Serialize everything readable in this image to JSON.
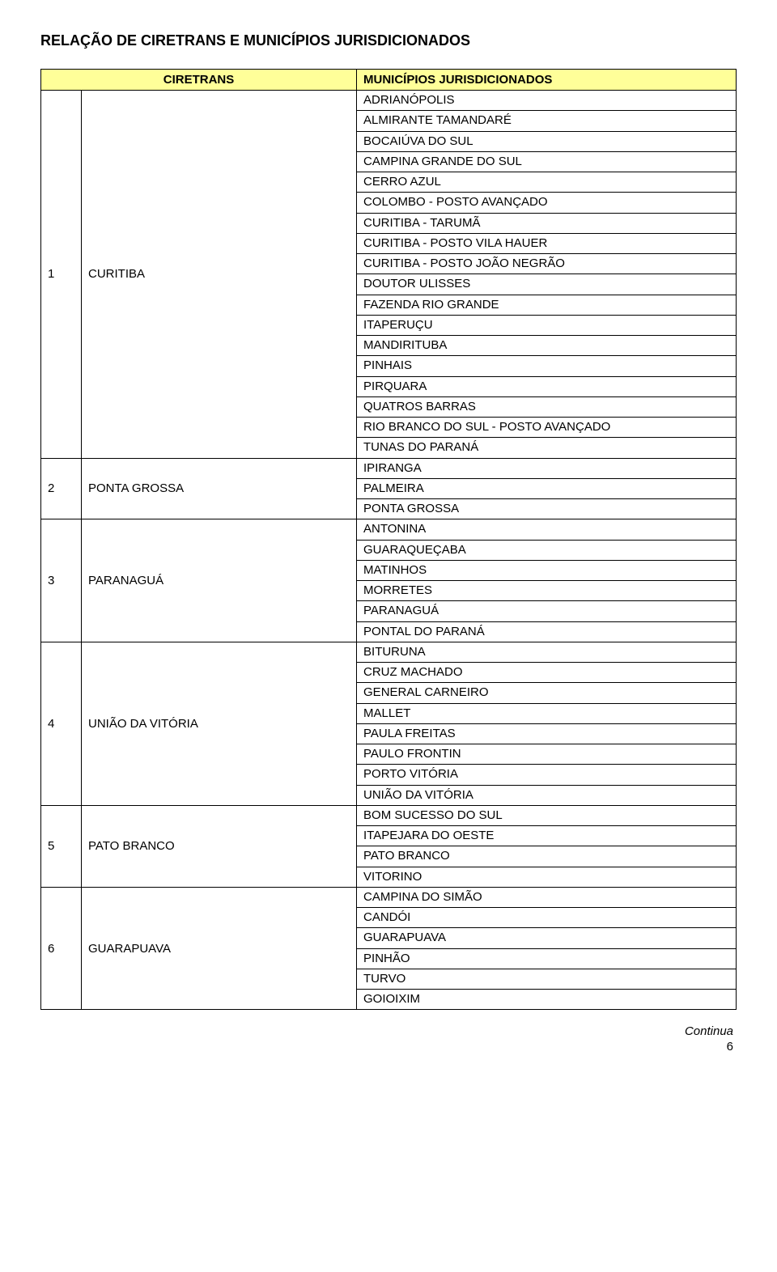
{
  "title": "RELAÇÃO DE CIRETRANS E MUNICÍPIOS JURISDICIONADOS",
  "headers": {
    "ciretrans": "CIRETRANS",
    "municipios": "MUNICÍPIOS JURISDICIONADOS"
  },
  "rows": [
    {
      "num": "1",
      "ciretrans": "CURITIBA",
      "municipios": [
        "ADRIANÓPOLIS",
        "ALMIRANTE TAMANDARÉ",
        "BOCAIÚVA DO SUL",
        "CAMPINA GRANDE DO SUL",
        "CERRO AZUL",
        "COLOMBO - POSTO AVANÇADO",
        "CURITIBA - TARUMÃ",
        "CURITIBA - POSTO VILA HAUER",
        "CURITIBA - POSTO JOÃO NEGRÃO",
        "DOUTOR ULISSES",
        "FAZENDA RIO GRANDE",
        "ITAPERUÇU",
        "MANDIRITUBA",
        "PINHAIS",
        "PIRQUARA",
        "QUATROS BARRAS",
        "RIO BRANCO DO SUL - POSTO AVANÇADO",
        "TUNAS DO PARANÁ"
      ]
    },
    {
      "num": "2",
      "ciretrans": "PONTA GROSSA",
      "municipios": [
        "IPIRANGA",
        "PALMEIRA",
        "PONTA GROSSA"
      ]
    },
    {
      "num": "3",
      "ciretrans": "PARANAGUÁ",
      "municipios": [
        "ANTONINA",
        "GUARAQUEÇABA",
        "MATINHOS",
        "MORRETES",
        "PARANAGUÁ",
        "PONTAL DO PARANÁ"
      ]
    },
    {
      "num": "4",
      "ciretrans": "UNIÃO DA VITÓRIA",
      "municipios": [
        "BITURUNA",
        "CRUZ MACHADO",
        "GENERAL CARNEIRO",
        "MALLET",
        "PAULA FREITAS",
        "PAULO FRONTIN",
        "PORTO VITÓRIA",
        "UNIÃO DA VITÓRIA"
      ]
    },
    {
      "num": "5",
      "ciretrans": "PATO BRANCO",
      "municipios": [
        "BOM SUCESSO DO SUL",
        "ITAPEJARA DO OESTE",
        "PATO BRANCO",
        "VITORINO"
      ]
    },
    {
      "num": "6",
      "ciretrans": "GUARAPUAVA",
      "municipios": [
        "CAMPINA DO SIMÃO",
        "CANDÓI",
        "GUARAPUAVA",
        "PINHÃO",
        "TURVO",
        "GOIOIXIM"
      ]
    }
  ],
  "footer": {
    "continua": "Continua",
    "page_number": "6"
  },
  "style": {
    "header_bg": "#ffff99",
    "border_color": "#000000",
    "title_fontsize": 18,
    "cell_fontsize": 15
  }
}
